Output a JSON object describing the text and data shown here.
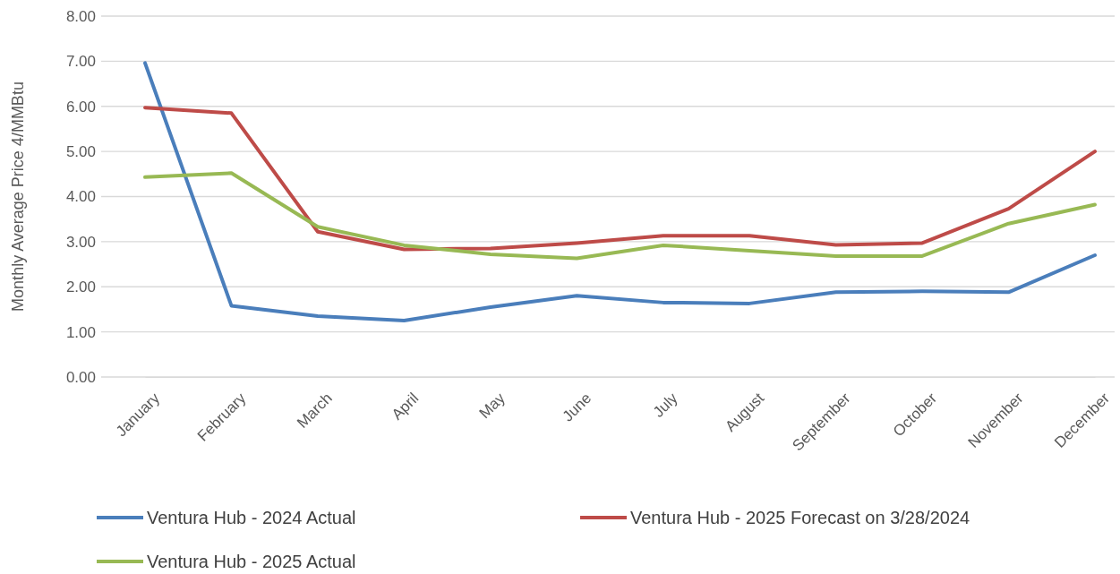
{
  "chart_data": {
    "type": "line",
    "ylabel": "Monthly Average Price 4/MMBtu",
    "categories": [
      "January",
      "February",
      "March",
      "April",
      "May",
      "June",
      "July",
      "August",
      "September",
      "October",
      "November",
      "December"
    ],
    "ylim": [
      0,
      8
    ],
    "yticks": [
      {
        "value": 0,
        "label": "0.00"
      },
      {
        "value": 1,
        "label": "1.00"
      },
      {
        "value": 2,
        "label": "2.00"
      },
      {
        "value": 3,
        "label": "3.00"
      },
      {
        "value": 4,
        "label": "4.00"
      },
      {
        "value": 5,
        "label": "5.00"
      },
      {
        "value": 6,
        "label": "6.00"
      },
      {
        "value": 7,
        "label": "7.00"
      },
      {
        "value": 8,
        "label": "8.00"
      }
    ],
    "grid": "y",
    "legend": "bottom",
    "marker": "none",
    "line_style": "solid",
    "series": [
      {
        "name": "Ventura Hub - 2024 Actual",
        "color": "#4a7ebb",
        "values": [
          6.96,
          1.58,
          1.35,
          1.25,
          1.55,
          1.8,
          1.65,
          1.63,
          1.88,
          1.9,
          1.88,
          2.7
        ]
      },
      {
        "name": "Ventura Hub - 2025 Forecast on 3/28/2024",
        "color": "#be4b48",
        "values": [
          5.97,
          5.85,
          3.22,
          2.83,
          2.85,
          2.97,
          3.13,
          3.13,
          2.93,
          2.97,
          3.73,
          5.0
        ]
      },
      {
        "name": "Ventura Hub - 2025 Actual",
        "color": "#98b954",
        "values": [
          4.43,
          4.52,
          3.33,
          2.92,
          2.72,
          2.63,
          2.92,
          2.8,
          2.68,
          2.68,
          3.4,
          3.82
        ]
      }
    ]
  }
}
